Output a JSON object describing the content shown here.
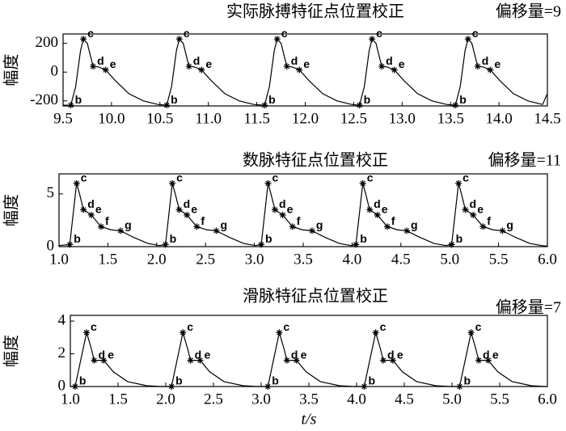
{
  "chart_data": [
    {
      "type": "line",
      "title": "实际脉搏特征点位置校正",
      "annotation": "偏移量=9",
      "ylabel": "幅度",
      "color": "#000000",
      "xlim": [
        9.5,
        14.5
      ],
      "ylim": [
        -235,
        265
      ],
      "xticks": [
        9.5,
        {
          "value": 10,
          "label": "10.0"
        },
        10.5,
        {
          "value": 11,
          "label": "11.0"
        },
        11.5,
        {
          "value": 12,
          "label": "12.0"
        },
        12.5,
        {
          "value": 13,
          "label": "13.0"
        },
        13.5,
        {
          "value": 14,
          "label": "14.0"
        },
        14.5
      ],
      "yticks": [
        -200,
        0,
        200
      ],
      "x": [
        9.5,
        9.58,
        9.63,
        9.68,
        9.71,
        9.75,
        9.81,
        9.87,
        9.94,
        10.04,
        10.18,
        10.33,
        10.48,
        10.57,
        10.62,
        10.67,
        10.7,
        10.74,
        10.8,
        10.86,
        10.93,
        11.03,
        11.17,
        11.32,
        11.47,
        11.58,
        11.63,
        11.68,
        11.71,
        11.75,
        11.81,
        11.87,
        11.94,
        12.04,
        12.18,
        12.33,
        12.48,
        12.56,
        12.61,
        12.66,
        12.69,
        12.73,
        12.79,
        12.85,
        12.92,
        13.02,
        13.16,
        13.31,
        13.46,
        13.55,
        13.6,
        13.65,
        13.68,
        13.72,
        13.78,
        13.84,
        13.91,
        14.01,
        14.15,
        14.3,
        14.45,
        14.5
      ],
      "values": [
        -230,
        -230,
        -100,
        150,
        230,
        200,
        40,
        35,
        15,
        -60,
        -150,
        -200,
        -225,
        -230,
        -100,
        150,
        230,
        200,
        40,
        35,
        15,
        -60,
        -150,
        -200,
        -225,
        -230,
        -100,
        150,
        230,
        200,
        40,
        35,
        15,
        -60,
        -150,
        -200,
        -225,
        -230,
        -100,
        150,
        230,
        200,
        40,
        35,
        15,
        -60,
        -150,
        -200,
        -225,
        -230,
        -100,
        150,
        230,
        200,
        40,
        35,
        15,
        -60,
        -150,
        -200,
        -225,
        -150
      ],
      "markers": [
        {
          "name": "b",
          "x": [
            9.58,
            10.57,
            11.58,
            12.56,
            13.55
          ],
          "values": [
            -230,
            -230,
            -230,
            -230,
            -230
          ]
        },
        {
          "name": "c",
          "x": [
            9.71,
            10.7,
            11.71,
            12.69,
            13.68
          ],
          "values": [
            230,
            230,
            230,
            230,
            230
          ]
        },
        {
          "name": "d",
          "x": [
            9.81,
            10.8,
            11.81,
            12.79,
            13.78
          ],
          "values": [
            40,
            40,
            40,
            40,
            40
          ]
        },
        {
          "name": "e",
          "x": [
            9.94,
            10.93,
            11.94,
            12.92,
            13.91
          ],
          "values": [
            15,
            15,
            15,
            15,
            15
          ]
        }
      ]
    },
    {
      "type": "line",
      "title": "数脉特征点位置校正",
      "annotation": "偏移量=11",
      "ylabel": "幅度",
      "color": "#000000",
      "xlim": [
        1.0,
        6.0
      ],
      "ylim": [
        0,
        6.9
      ],
      "xticks": [
        {
          "value": 1,
          "label": "1.0"
        },
        1.5,
        {
          "value": 2,
          "label": "2.0"
        },
        2.5,
        {
          "value": 3,
          "label": "3.0"
        },
        3.5,
        {
          "value": 4,
          "label": "4.0"
        },
        4.5,
        {
          "value": 5,
          "label": "5.0"
        },
        5.5,
        {
          "value": 6,
          "label": "6.0"
        }
      ],
      "yticks": [
        0,
        5
      ],
      "x": [
        1.0,
        1.11,
        1.18,
        1.21,
        1.25,
        1.33,
        1.43,
        1.53,
        1.63,
        1.76,
        1.91,
        2.03,
        2.09,
        2.16,
        2.19,
        2.23,
        2.31,
        2.41,
        2.51,
        2.61,
        2.74,
        2.89,
        3.01,
        3.07,
        3.14,
        3.17,
        3.21,
        3.29,
        3.39,
        3.49,
        3.59,
        3.72,
        3.87,
        3.99,
        4.04,
        4.11,
        4.14,
        4.18,
        4.26,
        4.36,
        4.46,
        4.56,
        4.69,
        4.84,
        4.96,
        5.02,
        5.09,
        5.12,
        5.16,
        5.24,
        5.34,
        5.44,
        5.54,
        5.67,
        5.82,
        5.94,
        6.0
      ],
      "values": [
        0.1,
        0.2,
        6.0,
        5.0,
        3.5,
        3.0,
        1.9,
        1.6,
        1.5,
        0.9,
        0.3,
        0.1,
        0.2,
        6.0,
        5.0,
        3.5,
        3.0,
        1.9,
        1.6,
        1.5,
        0.9,
        0.3,
        0.1,
        0.2,
        6.0,
        5.0,
        3.5,
        3.0,
        1.9,
        1.6,
        1.5,
        0.9,
        0.3,
        0.1,
        0.2,
        6.0,
        5.0,
        3.5,
        3.0,
        1.9,
        1.6,
        1.5,
        0.9,
        0.3,
        0.1,
        0.2,
        6.0,
        5.0,
        3.5,
        3.0,
        1.9,
        1.6,
        1.5,
        0.9,
        0.3,
        0.1,
        0.05
      ],
      "markers": [
        {
          "name": "b",
          "x": [
            1.11,
            2.09,
            3.07,
            4.04,
            5.02
          ],
          "values": [
            0.2,
            0.2,
            0.2,
            0.2,
            0.2
          ]
        },
        {
          "name": "c",
          "x": [
            1.18,
            2.16,
            3.14,
            4.11,
            5.09
          ],
          "values": [
            6.0,
            6.0,
            6.0,
            6.0,
            6.0
          ]
        },
        {
          "name": "d",
          "x": [
            1.25,
            2.23,
            3.21,
            4.18,
            5.16
          ],
          "values": [
            3.5,
            3.5,
            3.5,
            3.5,
            3.5
          ]
        },
        {
          "name": "e",
          "x": [
            1.33,
            2.31,
            3.29,
            4.26,
            5.24
          ],
          "values": [
            3.0,
            3.0,
            3.0,
            3.0,
            3.0
          ]
        },
        {
          "name": "f",
          "x": [
            1.43,
            2.41,
            3.39,
            4.36,
            5.34
          ],
          "values": [
            1.9,
            1.9,
            1.9,
            1.9,
            1.9
          ]
        },
        {
          "name": "g",
          "x": [
            1.63,
            2.61,
            3.59,
            4.56,
            5.54
          ],
          "values": [
            1.5,
            1.5,
            1.5,
            1.5,
            1.5
          ]
        }
      ]
    },
    {
      "type": "line",
      "title": "滑脉特征点位置校正",
      "annotation": "偏移量=7",
      "ylabel": "幅度",
      "xlabel": "t/s",
      "color": "#000000",
      "xlim": [
        1.0,
        6.0
      ],
      "ylim": [
        0,
        4.35
      ],
      "xticks": [
        {
          "value": 1,
          "label": "1.0"
        },
        1.5,
        {
          "value": 2,
          "label": "2.0"
        },
        2.5,
        {
          "value": 3,
          "label": "3.0"
        },
        3.5,
        {
          "value": 4,
          "label": "4.0"
        },
        4.5,
        {
          "value": 5,
          "label": "5.0"
        },
        5.5,
        {
          "value": 6,
          "label": "6.0"
        }
      ],
      "yticks": [
        0,
        2,
        4
      ],
      "x": [
        1.0,
        1.05,
        1.17,
        1.22,
        1.25,
        1.35,
        1.45,
        1.6,
        1.8,
        1.95,
        2.06,
        2.18,
        2.23,
        2.26,
        2.36,
        2.46,
        2.61,
        2.81,
        2.96,
        3.07,
        3.19,
        3.24,
        3.27,
        3.37,
        3.47,
        3.62,
        3.82,
        3.97,
        4.08,
        4.2,
        4.25,
        4.28,
        4.38,
        4.48,
        4.63,
        4.83,
        4.98,
        5.08,
        5.2,
        5.25,
        5.28,
        5.38,
        5.48,
        5.63,
        5.83,
        5.98,
        6.0
      ],
      "values": [
        0,
        0,
        3.3,
        2.3,
        1.6,
        1.6,
        0.9,
        0.3,
        0.05,
        0,
        0,
        3.3,
        2.3,
        1.6,
        1.6,
        0.9,
        0.3,
        0.05,
        0,
        0,
        3.3,
        2.3,
        1.6,
        1.6,
        0.9,
        0.3,
        0.05,
        0,
        0,
        3.3,
        2.3,
        1.6,
        1.6,
        0.9,
        0.3,
        0.05,
        0,
        0,
        3.3,
        2.3,
        1.6,
        1.6,
        0.9,
        0.3,
        0.05,
        0,
        0
      ],
      "markers": [
        {
          "name": "b",
          "x": [
            1.05,
            2.06,
            3.07,
            4.08,
            5.08
          ],
          "values": [
            0,
            0,
            0,
            0,
            0
          ]
        },
        {
          "name": "c",
          "x": [
            1.17,
            2.18,
            3.19,
            4.2,
            5.2
          ],
          "values": [
            3.3,
            3.3,
            3.3,
            3.3,
            3.3
          ]
        },
        {
          "name": "d",
          "x": [
            1.25,
            2.26,
            3.27,
            4.28,
            5.28
          ],
          "values": [
            1.6,
            1.6,
            1.6,
            1.6,
            1.6
          ]
        },
        {
          "name": "e",
          "x": [
            1.35,
            2.36,
            3.37,
            4.38,
            5.38
          ],
          "values": [
            1.6,
            1.6,
            1.6,
            1.6,
            1.6
          ]
        }
      ]
    }
  ]
}
